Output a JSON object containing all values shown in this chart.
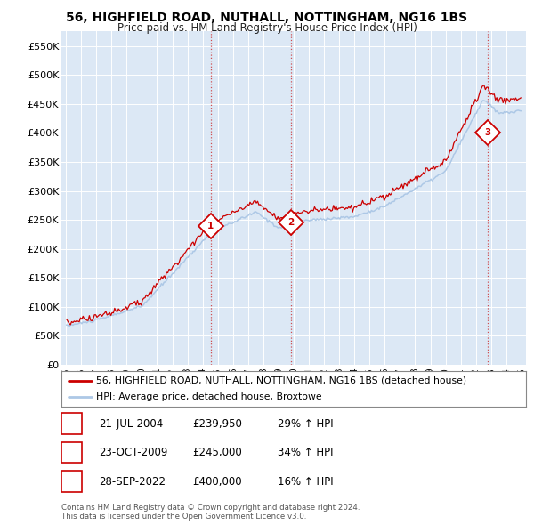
{
  "title": "56, HIGHFIELD ROAD, NUTHALL, NOTTINGHAM, NG16 1BS",
  "subtitle": "Price paid vs. HM Land Registry's House Price Index (HPI)",
  "title_fontsize": 10,
  "subtitle_fontsize": 8.5,
  "ylim": [
    0,
    575000
  ],
  "yticks": [
    0,
    50000,
    100000,
    150000,
    200000,
    250000,
    300000,
    350000,
    400000,
    450000,
    500000,
    550000
  ],
  "ytick_labels": [
    "£0",
    "£50K",
    "£100K",
    "£150K",
    "£200K",
    "£250K",
    "£300K",
    "£350K",
    "£400K",
    "£450K",
    "£500K",
    "£550K"
  ],
  "hpi_color": "#adc8e6",
  "price_color": "#cc0000",
  "sale_marker_color": "#cc0000",
  "purchase_points": [
    {
      "label": "1",
      "x_year": 2004.54,
      "price": 239950
    },
    {
      "label": "2",
      "x_year": 2009.81,
      "price": 245000
    },
    {
      "label": "3",
      "x_year": 2022.75,
      "price": 400000
    }
  ],
  "vline_dates": [
    2004.54,
    2009.81,
    2022.75
  ],
  "table_rows": [
    {
      "label": "1",
      "date": "21-JUL-2004",
      "price": "£239,950",
      "hpi": "29% ↑ HPI"
    },
    {
      "label": "2",
      "date": "23-OCT-2009",
      "price": "£245,000",
      "hpi": "34% ↑ HPI"
    },
    {
      "label": "3",
      "date": "28-SEP-2022",
      "price": "£400,000",
      "hpi": "16% ↑ HPI"
    }
  ],
  "legend_line1": "56, HIGHFIELD ROAD, NUTHALL, NOTTINGHAM, NG16 1BS (detached house)",
  "legend_line2": "HPI: Average price, detached house, Broxtowe",
  "footnote": "Contains HM Land Registry data © Crown copyright and database right 2024.\nThis data is licensed under the Open Government Licence v3.0.",
  "background_color": "#dce8f5",
  "x_start": 1995,
  "x_end": 2025,
  "xlim_left": 1994.7,
  "xlim_right": 2025.3
}
